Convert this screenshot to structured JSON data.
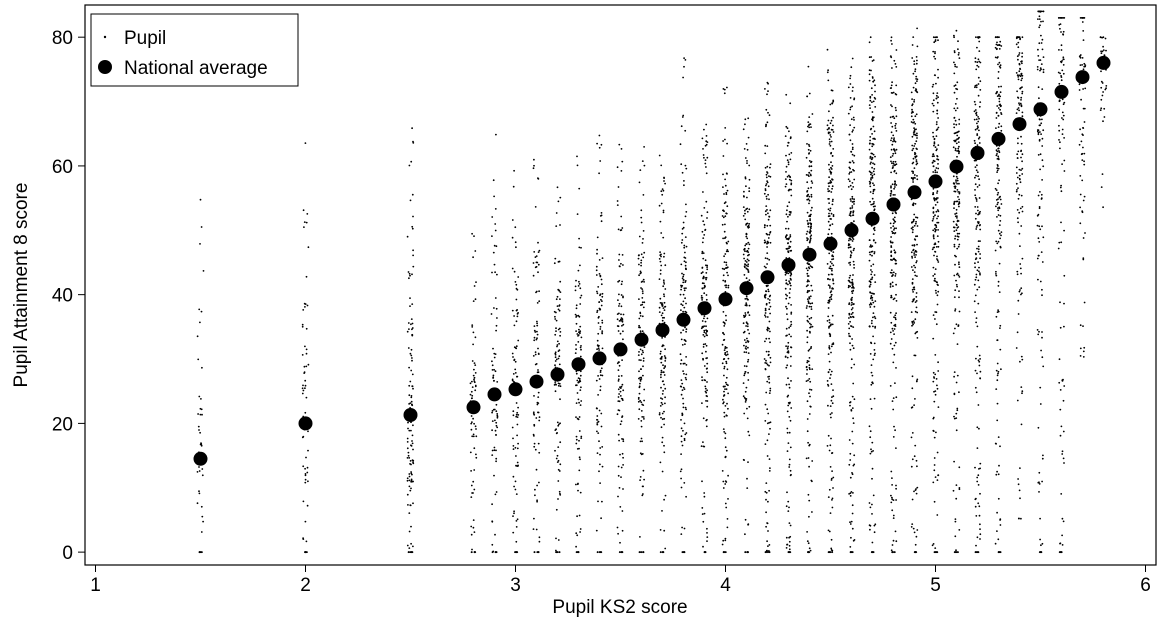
{
  "chart_data": {
    "type": "scatter",
    "title": "",
    "xlabel": "Pupil KS2 score",
    "ylabel": "Pupil Attainment 8 score",
    "xlim": [
      0.95,
      6.05
    ],
    "ylim": [
      -2,
      85
    ],
    "xticks": [
      1,
      2,
      3,
      4,
      5,
      6
    ],
    "yticks": [
      0,
      20,
      40,
      60,
      80
    ],
    "legend": {
      "placement": "top-left",
      "entries": [
        "Pupil",
        "National average"
      ]
    },
    "series": [
      {
        "name": "Pupil",
        "marker": "dot",
        "note_columns": "Pupil points are vertical columns at each KS2 value; each column gives [x, min y, max y, approximate density]",
        "columns": [
          [
            1.5,
            0,
            55,
            0.35
          ],
          [
            2.0,
            0,
            66,
            0.5
          ],
          [
            2.5,
            0,
            66,
            1.0
          ],
          [
            2.8,
            0,
            51,
            0.6
          ],
          [
            2.9,
            0,
            67,
            0.65
          ],
          [
            3.0,
            0,
            60,
            0.7
          ],
          [
            3.1,
            0,
            61,
            0.75
          ],
          [
            3.2,
            0,
            58,
            0.8
          ],
          [
            3.3,
            0,
            62,
            0.85
          ],
          [
            3.4,
            0,
            65,
            0.9
          ],
          [
            3.5,
            0,
            66,
            0.95
          ],
          [
            3.6,
            0,
            63,
            1.0
          ],
          [
            3.7,
            0,
            64,
            1.05
          ],
          [
            3.8,
            0,
            78,
            1.1
          ],
          [
            3.9,
            0,
            67,
            1.2
          ],
          [
            4.0,
            0,
            73,
            1.3
          ],
          [
            4.1,
            0,
            68,
            1.4
          ],
          [
            4.2,
            0,
            73,
            1.5
          ],
          [
            4.3,
            0,
            72,
            1.6
          ],
          [
            4.4,
            0,
            76,
            1.7
          ],
          [
            4.5,
            0,
            80,
            1.8
          ],
          [
            4.6,
            0,
            77,
            1.8
          ],
          [
            4.7,
            0,
            80,
            1.8
          ],
          [
            4.8,
            0,
            80,
            1.8
          ],
          [
            4.9,
            0,
            82,
            1.8
          ],
          [
            5.0,
            0,
            80,
            1.7
          ],
          [
            5.1,
            0,
            81,
            1.6
          ],
          [
            5.2,
            0,
            80,
            1.5
          ],
          [
            5.3,
            0,
            80,
            1.4
          ],
          [
            5.4,
            5,
            80,
            1.2
          ],
          [
            5.5,
            0,
            84,
            1.0
          ],
          [
            5.6,
            0,
            83,
            0.8
          ],
          [
            5.7,
            30,
            83,
            0.6
          ],
          [
            5.8,
            48,
            80,
            0.35
          ]
        ]
      },
      {
        "name": "National average",
        "marker": "large-dot",
        "x": [
          1.5,
          2.0,
          2.5,
          2.8,
          2.9,
          3.0,
          3.1,
          3.2,
          3.3,
          3.4,
          3.5,
          3.6,
          3.7,
          3.8,
          3.9,
          4.0,
          4.1,
          4.2,
          4.3,
          4.4,
          4.5,
          4.6,
          4.7,
          4.8,
          4.9,
          5.0,
          5.1,
          5.2,
          5.3,
          5.4,
          5.5,
          5.6,
          5.7,
          5.8
        ],
        "y": [
          14.5,
          20,
          21.3,
          22.5,
          24.5,
          25.3,
          26.5,
          27.6,
          29.2,
          30.1,
          31.5,
          33.0,
          34.5,
          36.1,
          37.9,
          39.3,
          41.0,
          42.7,
          44.6,
          46.2,
          47.9,
          50.0,
          51.8,
          54.0,
          55.9,
          57.6,
          59.9,
          62.0,
          64.2,
          66.5,
          68.8,
          71.5,
          73.8,
          76.0
        ]
      }
    ]
  }
}
